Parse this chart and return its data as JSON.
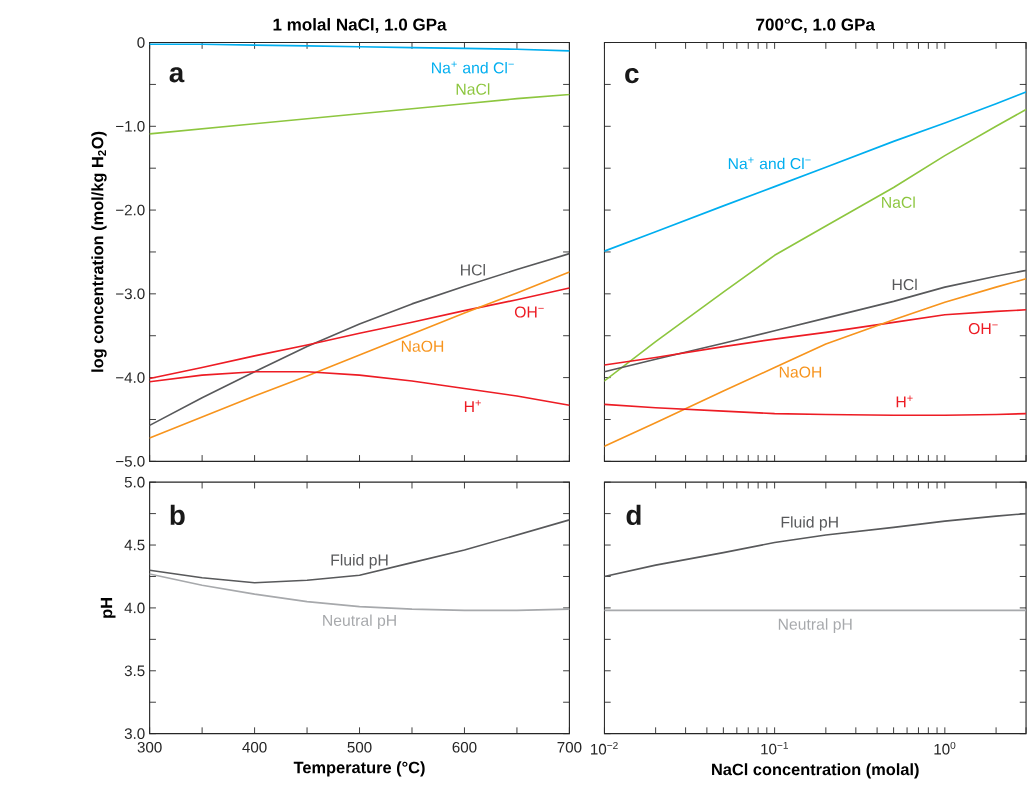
{
  "chart_data": [
    {
      "type": "line",
      "title": "1 molal NaCl, 1.0 GPa",
      "ylabel": "log concentration (mol/kg H$_{2}$O)",
      "annotations": [
        "a"
      ],
      "x": [
        300,
        350,
        400,
        450,
        500,
        550,
        600,
        650,
        700
      ],
      "xlim": [
        300,
        700
      ],
      "ylim": [
        -5,
        0
      ],
      "xticks": [
        {
          "value": 300,
          "label": null
        },
        {
          "value": 350,
          "label": null
        },
        {
          "value": 400,
          "label": null
        },
        {
          "value": 450,
          "label": null
        },
        {
          "value": 500,
          "label": null
        },
        {
          "value": 550,
          "label": null
        },
        {
          "value": 600,
          "label": null
        },
        {
          "value": 650,
          "label": null
        },
        {
          "value": 700,
          "label": null
        }
      ],
      "yticks": [
        0,
        {
          "value": -0.5,
          "label": null
        },
        {
          "value": -1,
          "label": "−1.0"
        },
        {
          "value": -1.5,
          "label": null
        },
        {
          "value": -2,
          "label": "−2.0"
        },
        {
          "value": -2.5,
          "label": null
        },
        {
          "value": -3,
          "label": "−3.0"
        },
        {
          "value": -3.5,
          "label": null
        },
        {
          "value": -4,
          "label": "−4.0"
        },
        {
          "value": -4.5,
          "label": null
        },
        {
          "value": -5,
          "label": "−5.0"
        }
      ],
      "tick_labels": "y",
      "series": [
        {
          "name": "Na$^{+}$ and Cl$^{−}$",
          "color": "#00aeef",
          "values": [
            -0.02,
            -0.02,
            -0.03,
            -0.04,
            -0.05,
            -0.06,
            -0.07,
            -0.08,
            -0.1
          ]
        },
        {
          "name": "NaCl",
          "color": "#8dc63f",
          "values": [
            -1.09,
            -1.03,
            -0.97,
            -0.91,
            -0.85,
            -0.79,
            -0.73,
            -0.67,
            -0.62
          ]
        },
        {
          "name": "HCl",
          "color": "#58595b",
          "values": [
            -4.57,
            -4.24,
            -3.93,
            -3.63,
            -3.36,
            -3.12,
            -2.91,
            -2.71,
            -2.52
          ]
        },
        {
          "name": "OH$^{−}$",
          "color": "#ed1c24",
          "values": [
            -4.01,
            -3.88,
            -3.74,
            -3.61,
            -3.47,
            -3.34,
            -3.2,
            -3.07,
            -2.93
          ]
        },
        {
          "name": "NaOH",
          "color": "#f7941d",
          "values": [
            -4.72,
            -4.47,
            -4.22,
            -3.98,
            -3.73,
            -3.48,
            -3.23,
            -2.99,
            -2.74
          ]
        },
        {
          "name": "H$^{+}$",
          "color": "#ed1c24",
          "values": [
            -4.05,
            -3.97,
            -3.93,
            -3.93,
            -3.97,
            -4.04,
            -4.13,
            -4.22,
            -4.33
          ]
        }
      ]
    },
    {
      "type": "line",
      "title": "700°C, 1.0 GPa",
      "annotations": [
        "c"
      ],
      "log": "x",
      "x": [
        0.01,
        0.02,
        0.05,
        0.1,
        0.2,
        0.5,
        1,
        2,
        3
      ],
      "xlim": [
        0.01,
        3
      ],
      "ylim": [
        -5,
        0
      ],
      "xticks": [
        {
          "value": 0.01,
          "label": null
        },
        {
          "value": 0.02,
          "label": null
        },
        {
          "value": 0.03,
          "label": null
        },
        {
          "value": 0.04,
          "label": null
        },
        {
          "value": 0.05,
          "label": null
        },
        {
          "value": 0.06,
          "label": null
        },
        {
          "value": 0.07,
          "label": null
        },
        {
          "value": 0.08,
          "label": null
        },
        {
          "value": 0.09,
          "label": null
        },
        {
          "value": 0.1,
          "label": null
        },
        {
          "value": 0.2,
          "label": null
        },
        {
          "value": 0.3,
          "label": null
        },
        {
          "value": 0.4,
          "label": null
        },
        {
          "value": 0.5,
          "label": null
        },
        {
          "value": 0.6,
          "label": null
        },
        {
          "value": 0.7,
          "label": null
        },
        {
          "value": 0.8,
          "label": null
        },
        {
          "value": 0.9,
          "label": null
        },
        {
          "value": 1,
          "label": null
        },
        {
          "value": 2,
          "label": null
        },
        {
          "value": 3,
          "label": null
        }
      ],
      "yticks": [
        {
          "value": 0,
          "label": null
        },
        {
          "value": -0.5,
          "label": null
        },
        {
          "value": -1,
          "label": null
        },
        {
          "value": -1.5,
          "label": null
        },
        {
          "value": -2,
          "label": null
        },
        {
          "value": -2.5,
          "label": null
        },
        {
          "value": -3,
          "label": null
        },
        {
          "value": -3.5,
          "label": null
        },
        {
          "value": -4,
          "label": null
        },
        {
          "value": -4.5,
          "label": null
        },
        {
          "value": -5,
          "label": null
        }
      ],
      "tick_labels": false,
      "series": [
        {
          "name": "Na$^{+}$ and Cl$^{−}$",
          "color": "#00aeef",
          "values": [
            -2.49,
            -2.26,
            -1.95,
            -1.72,
            -1.49,
            -1.18,
            -0.96,
            -0.73,
            -0.59
          ]
        },
        {
          "name": "NaCl",
          "color": "#8dc63f",
          "values": [
            -4.04,
            -3.57,
            -2.98,
            -2.54,
            -2.19,
            -1.73,
            -1.35,
            -1.0,
            -0.8
          ]
        },
        {
          "name": "HCl",
          "color": "#58595b",
          "values": [
            -3.93,
            -3.78,
            -3.59,
            -3.44,
            -3.29,
            -3.09,
            -2.92,
            -2.79,
            -2.72
          ]
        },
        {
          "name": "OH$^{−}$",
          "color": "#ed1c24",
          "values": [
            -3.85,
            -3.76,
            -3.63,
            -3.54,
            -3.46,
            -3.34,
            -3.25,
            -3.21,
            -3.19
          ]
        },
        {
          "name": "NaOH",
          "color": "#f7941d",
          "values": [
            -4.82,
            -4.54,
            -4.16,
            -3.88,
            -3.6,
            -3.31,
            -3.1,
            -2.92,
            -2.82
          ]
        },
        {
          "name": "H$^{+}$",
          "color": "#ed1c24",
          "values": [
            -4.32,
            -4.36,
            -4.4,
            -4.43,
            -4.44,
            -4.45,
            -4.45,
            -4.44,
            -4.43
          ]
        }
      ]
    },
    {
      "type": "line",
      "ylabel": "pH",
      "xlabel": "Temperature (°C)",
      "annotations": [
        "b"
      ],
      "x": [
        300,
        350,
        400,
        450,
        500,
        550,
        600,
        650,
        700
      ],
      "xlim": [
        300,
        700
      ],
      "ylim": [
        3,
        5
      ],
      "xticks": [
        300,
        {
          "value": 350,
          "label": null
        },
        400,
        {
          "value": 450,
          "label": null
        },
        500,
        {
          "value": 550,
          "label": null
        },
        600,
        {
          "value": 650,
          "label": null
        },
        700
      ],
      "yticks": [
        {
          "value": 3,
          "label": "3.0"
        },
        {
          "value": 3.25,
          "label": null
        },
        3.5,
        {
          "value": 3.75,
          "label": null
        },
        {
          "value": 4,
          "label": "4.0"
        },
        {
          "value": 4.25,
          "label": null
        },
        4.5,
        {
          "value": 4.75,
          "label": null
        },
        {
          "value": 5,
          "label": "5.0"
        }
      ],
      "series": [
        {
          "name": "Fluid pH",
          "color": "#58595b",
          "values": [
            4.3,
            4.24,
            4.2,
            4.22,
            4.26,
            4.36,
            4.46,
            4.58,
            4.7
          ]
        },
        {
          "name": "Neutral pH",
          "color": "#a7a9ac",
          "values": [
            4.27,
            4.18,
            4.11,
            4.05,
            4.01,
            3.99,
            3.98,
            3.98,
            3.99
          ]
        }
      ]
    },
    {
      "type": "line",
      "xlabel": "NaCl concentration (molal)",
      "annotations": [
        "d"
      ],
      "log": "x",
      "x": [
        0.01,
        0.02,
        0.05,
        0.1,
        0.2,
        0.5,
        1,
        2,
        3
      ],
      "xlim": [
        0.01,
        3
      ],
      "ylim": [
        3,
        5
      ],
      "xticks": [
        {
          "value": 0.01,
          "label": "10$^{−2}$"
        },
        {
          "value": 0.02,
          "label": null
        },
        {
          "value": 0.03,
          "label": null
        },
        {
          "value": 0.04,
          "label": null
        },
        {
          "value": 0.05,
          "label": null
        },
        {
          "value": 0.06,
          "label": null
        },
        {
          "value": 0.07,
          "label": null
        },
        {
          "value": 0.08,
          "label": null
        },
        {
          "value": 0.09,
          "label": null
        },
        {
          "value": 0.1,
          "label": "10$^{−1}$"
        },
        {
          "value": 0.2,
          "label": null
        },
        {
          "value": 0.3,
          "label": null
        },
        {
          "value": 0.4,
          "label": null
        },
        {
          "value": 0.5,
          "label": null
        },
        {
          "value": 0.6,
          "label": null
        },
        {
          "value": 0.7,
          "label": null
        },
        {
          "value": 0.8,
          "label": null
        },
        {
          "value": 0.9,
          "label": null
        },
        {
          "value": 1,
          "label": "10$^{0}$"
        },
        {
          "value": 2,
          "label": null
        },
        {
          "value": 3,
          "label": null
        }
      ],
      "yticks": [
        {
          "value": 3,
          "label": null
        },
        {
          "value": 3.25,
          "label": null
        },
        {
          "value": 3.5,
          "label": null
        },
        {
          "value": 3.75,
          "label": null
        },
        {
          "value": 4,
          "label": null
        },
        {
          "value": 4.25,
          "label": null
        },
        {
          "value": 4.5,
          "label": null
        },
        {
          "value": 4.75,
          "label": null
        },
        {
          "value": 5,
          "label": null
        }
      ],
      "tick_labels": "x",
      "series": [
        {
          "name": "Fluid pH",
          "color": "#58595b",
          "values": [
            4.25,
            4.34,
            4.44,
            4.52,
            4.58,
            4.64,
            4.69,
            4.73,
            4.75
          ]
        },
        {
          "name": "Neutral pH",
          "color": "#a7a9ac",
          "values": [
            3.98,
            3.98,
            3.98,
            3.98,
            3.98,
            3.98,
            3.98,
            3.98,
            3.98
          ]
        }
      ]
    }
  ]
}
